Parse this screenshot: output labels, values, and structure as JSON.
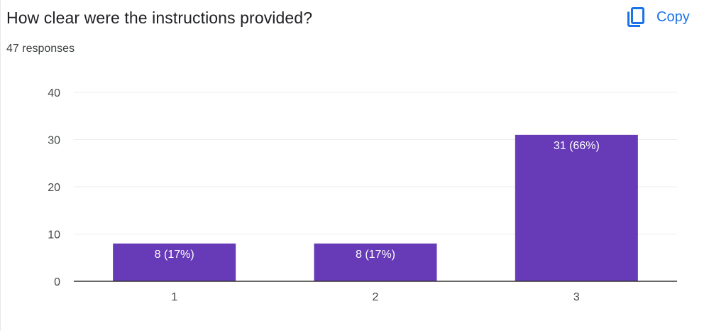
{
  "question": {
    "title": "How clear were the instructions provided?",
    "responses": "47 responses"
  },
  "toolbar": {
    "copy_label": "Copy",
    "copy_icon": "copy-icon",
    "accent": "#1a73e8"
  },
  "chart_data": {
    "type": "bar",
    "categories": [
      "1",
      "2",
      "3"
    ],
    "values": [
      8,
      8,
      31
    ],
    "labels": [
      "8 (17%)",
      "8 (17%)",
      "31 (66%)"
    ],
    "ylim": [
      0,
      40
    ],
    "yticks": [
      0,
      10,
      20,
      30,
      40
    ],
    "grid": true,
    "bar_color": "#673ab7",
    "grid_color": "#ececec",
    "axis_color": "#333333"
  }
}
